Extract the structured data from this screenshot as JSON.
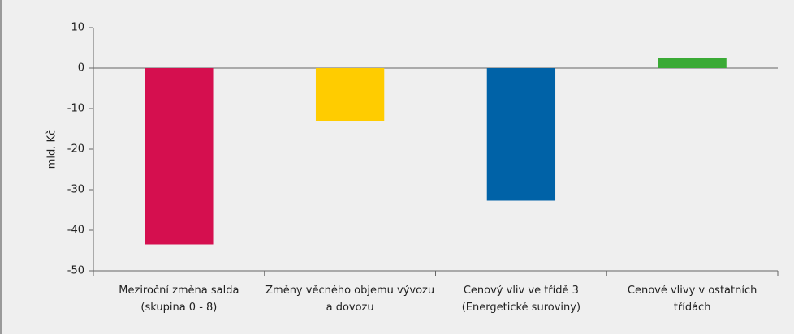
{
  "chart_data": {
    "type": "bar",
    "y_label": "mld. Kč",
    "categories": [
      "Meziroční změna salda\n(skupina 0 - 8)",
      "Změny věcného objemu vývozu\na dovozu",
      "Cenový vliv ve třídě 3\n(Energetické suroviny)",
      "Cenové vlivy v ostatních\ntřídách"
    ],
    "values": [
      -43.5,
      -13,
      -32.7,
      2.4
    ],
    "colors": [
      "#d50f4f",
      "#ffcc00",
      "#0062a7",
      "#3aaa35"
    ],
    "ylim": [
      -50,
      10
    ],
    "yticks": [
      -50,
      -40,
      -30,
      -20,
      -10,
      0,
      10
    ],
    "grid": false
  }
}
